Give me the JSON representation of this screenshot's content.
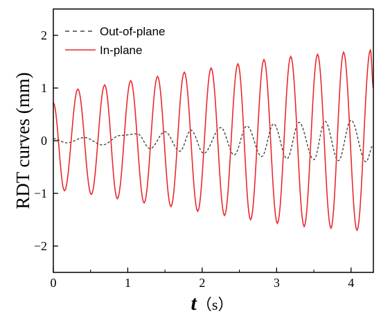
{
  "chart_data": {
    "type": "line",
    "title": "",
    "xlabel_symbol": "t",
    "xlabel_unit": "（s）",
    "ylabel": "RDT curves (mm)",
    "xlim": [
      0,
      4.3
    ],
    "ylim": [
      -2.5,
      2.5
    ],
    "xticks": [
      0,
      1,
      2,
      3,
      4
    ],
    "xtick_labels": [
      "0",
      "1",
      "2",
      "3",
      "4"
    ],
    "yticks": [
      -2,
      -1,
      0,
      1,
      2
    ],
    "ytick_labels": [
      "−2",
      "−1",
      "0",
      "1",
      "2"
    ],
    "grid": false,
    "legend_position": "top-left",
    "series": [
      {
        "name": "Out-of-plane",
        "color": "#444444",
        "style": "dashed",
        "peaks": [
          {
            "x": 0.0,
            "y": 0.04
          },
          {
            "x": 0.18,
            "y": -0.04
          },
          {
            "x": 0.42,
            "y": 0.06
          },
          {
            "x": 0.66,
            "y": -0.08
          },
          {
            "x": 0.9,
            "y": 0.1
          },
          {
            "x": 1.13,
            "y": 0.13
          },
          {
            "x": 1.3,
            "y": -0.15
          },
          {
            "x": 1.5,
            "y": 0.17
          },
          {
            "x": 1.7,
            "y": -0.2
          },
          {
            "x": 1.85,
            "y": 0.2
          },
          {
            "x": 2.02,
            "y": -0.24
          },
          {
            "x": 2.25,
            "y": 0.25
          },
          {
            "x": 2.43,
            "y": -0.27
          },
          {
            "x": 2.6,
            "y": 0.28
          },
          {
            "x": 2.8,
            "y": -0.3
          },
          {
            "x": 2.96,
            "y": 0.32
          },
          {
            "x": 3.14,
            "y": -0.34
          },
          {
            "x": 3.3,
            "y": 0.35
          },
          {
            "x": 3.5,
            "y": -0.36
          },
          {
            "x": 3.65,
            "y": 0.37
          },
          {
            "x": 3.83,
            "y": -0.38
          },
          {
            "x": 4.0,
            "y": 0.39
          },
          {
            "x": 4.2,
            "y": -0.4
          },
          {
            "x": 4.3,
            "y": -0.08
          }
        ]
      },
      {
        "name": "In-plane",
        "color": "#e8282e",
        "style": "solid",
        "peaks": [
          {
            "x": 0.0,
            "y": 0.72
          },
          {
            "x": 0.15,
            "y": -0.95
          },
          {
            "x": 0.33,
            "y": 0.98
          },
          {
            "x": 0.51,
            "y": -1.02
          },
          {
            "x": 0.69,
            "y": 1.06
          },
          {
            "x": 0.86,
            "y": -1.1
          },
          {
            "x": 1.04,
            "y": 1.14
          },
          {
            "x": 1.22,
            "y": -1.18
          },
          {
            "x": 1.4,
            "y": 1.22
          },
          {
            "x": 1.58,
            "y": -1.25
          },
          {
            "x": 1.76,
            "y": 1.3
          },
          {
            "x": 1.94,
            "y": -1.34
          },
          {
            "x": 2.12,
            "y": 1.38
          },
          {
            "x": 2.3,
            "y": -1.42
          },
          {
            "x": 2.48,
            "y": 1.46
          },
          {
            "x": 2.65,
            "y": -1.5
          },
          {
            "x": 2.83,
            "y": 1.54
          },
          {
            "x": 3.01,
            "y": -1.57
          },
          {
            "x": 3.19,
            "y": 1.6
          },
          {
            "x": 3.37,
            "y": -1.63
          },
          {
            "x": 3.55,
            "y": 1.64
          },
          {
            "x": 3.73,
            "y": -1.66
          },
          {
            "x": 3.9,
            "y": 1.68
          },
          {
            "x": 4.08,
            "y": -1.7
          },
          {
            "x": 4.26,
            "y": 1.72
          },
          {
            "x": 4.3,
            "y": 1.0
          }
        ]
      }
    ]
  }
}
